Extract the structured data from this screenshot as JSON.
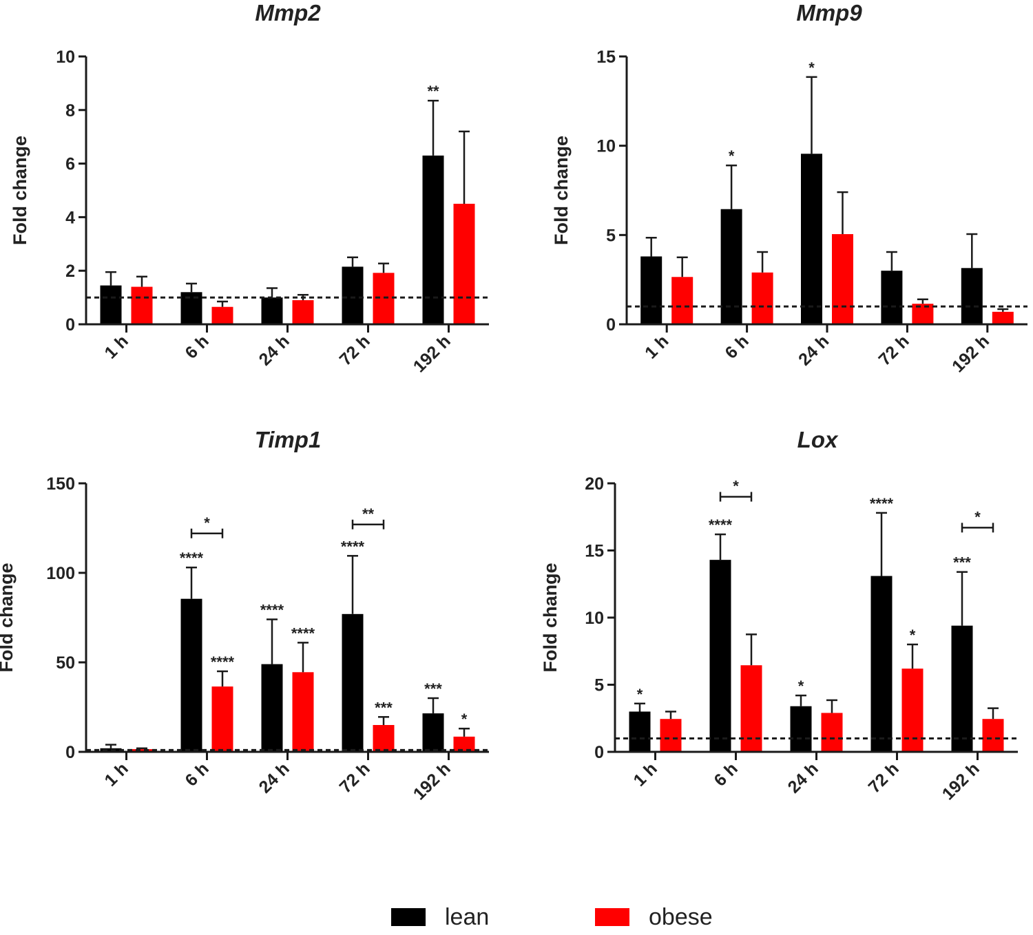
{
  "colors": {
    "lean": "#000000",
    "obese": "#ff0000",
    "axis": "#1a1a1a",
    "text": "#222222"
  },
  "legend": {
    "lean_label": "lean",
    "obese_label": "obese"
  },
  "chart_data": [
    {
      "id": "mmp2",
      "type": "bar",
      "title": "Mmp2",
      "ylabel": "Fold change",
      "xlabel": "",
      "categories": [
        "1 h",
        "6 h",
        "24 h",
        "72 h",
        "192 h"
      ],
      "ylim": [
        0,
        10
      ],
      "yticks": [
        "0",
        "2",
        "4",
        "6",
        "8",
        "10"
      ],
      "yticks_values": [
        0,
        2,
        4,
        6,
        8,
        10
      ],
      "reference_line": 1,
      "series": [
        {
          "name": "lean",
          "values": [
            1.45,
            1.2,
            1.0,
            2.15,
            6.3
          ],
          "errors": [
            0.5,
            0.32,
            0.35,
            0.35,
            2.05
          ]
        },
        {
          "name": "obese",
          "values": [
            1.4,
            0.65,
            0.9,
            1.92,
            4.5
          ],
          "errors": [
            0.38,
            0.2,
            0.2,
            0.35,
            2.7
          ]
        }
      ],
      "annotations": [
        {
          "text": "**",
          "category": 4,
          "series": 0
        }
      ],
      "brackets": []
    },
    {
      "id": "mmp9",
      "type": "bar",
      "title": "Mmp9",
      "ylabel": "Fold change",
      "xlabel": "",
      "categories": [
        "1 h",
        "6 h",
        "24 h",
        "72 h",
        "192 h"
      ],
      "ylim": [
        0,
        15
      ],
      "yticks": [
        "0",
        "5",
        "10",
        "15"
      ],
      "yticks_values": [
        0,
        5,
        10,
        15
      ],
      "reference_line": 1,
      "series": [
        {
          "name": "lean",
          "values": [
            3.8,
            6.45,
            9.55,
            3.0,
            3.15
          ],
          "errors": [
            1.05,
            2.45,
            4.3,
            1.05,
            1.9
          ]
        },
        {
          "name": "obese",
          "values": [
            2.65,
            2.9,
            5.05,
            1.15,
            0.7
          ],
          "errors": [
            1.1,
            1.15,
            2.35,
            0.25,
            0.15
          ]
        }
      ],
      "annotations": [
        {
          "text": "*",
          "category": 1,
          "series": 0
        },
        {
          "text": "*",
          "category": 2,
          "series": 0
        }
      ],
      "brackets": []
    },
    {
      "id": "timp1",
      "type": "bar",
      "title": "Timp1",
      "ylabel": "Fold change",
      "xlabel": "",
      "categories": [
        "1 h",
        "6 h",
        "24 h",
        "72 h",
        "192 h"
      ],
      "ylim": [
        0,
        150
      ],
      "yticks": [
        "0",
        "50",
        "100",
        "150"
      ],
      "yticks_values": [
        0,
        50,
        100,
        150
      ],
      "reference_line": 1,
      "series": [
        {
          "name": "lean",
          "values": [
            2,
            85.5,
            49,
            77,
            21.5
          ],
          "errors": [
            2,
            17.5,
            25,
            32.5,
            8.5
          ]
        },
        {
          "name": "obese",
          "values": [
            1.5,
            36.5,
            44.5,
            15,
            8.5
          ],
          "errors": [
            0.5,
            8.5,
            16.5,
            4.5,
            4.5
          ]
        }
      ],
      "annotations": [
        {
          "text": "****",
          "category": 1,
          "series": 0
        },
        {
          "text": "****",
          "category": 1,
          "series": 1
        },
        {
          "text": "****",
          "category": 2,
          "series": 0
        },
        {
          "text": "****",
          "category": 2,
          "series": 1
        },
        {
          "text": "****",
          "category": 3,
          "series": 0
        },
        {
          "text": "***",
          "category": 3,
          "series": 1
        },
        {
          "text": "***",
          "category": 4,
          "series": 0
        },
        {
          "text": "*",
          "category": 4,
          "series": 1
        }
      ],
      "brackets": [
        {
          "category": 1,
          "level": 122,
          "text": "*"
        },
        {
          "category": 3,
          "level": 127,
          "text": "**"
        }
      ]
    },
    {
      "id": "lox",
      "type": "bar",
      "title": "Lox",
      "ylabel": "Fold change",
      "xlabel": "",
      "categories": [
        "1 h",
        "6 h",
        "24 h",
        "72 h",
        "192 h"
      ],
      "ylim": [
        0,
        20
      ],
      "yticks": [
        "0",
        "5",
        "10",
        "15",
        "20"
      ],
      "yticks_values": [
        0,
        5,
        10,
        15,
        20
      ],
      "reference_line": 1,
      "series": [
        {
          "name": "lean",
          "values": [
            3.0,
            14.3,
            3.4,
            13.1,
            9.4
          ],
          "errors": [
            0.6,
            1.9,
            0.8,
            4.7,
            4.0
          ]
        },
        {
          "name": "obese",
          "values": [
            2.45,
            6.45,
            2.9,
            6.2,
            2.45
          ],
          "errors": [
            0.55,
            2.3,
            0.95,
            1.8,
            0.8
          ]
        }
      ],
      "annotations": [
        {
          "text": "*",
          "category": 0,
          "series": 0
        },
        {
          "text": "****",
          "category": 1,
          "series": 0
        },
        {
          "text": "*",
          "category": 2,
          "series": 0
        },
        {
          "text": "****",
          "category": 3,
          "series": 0
        },
        {
          "text": "*",
          "category": 3,
          "series": 1
        },
        {
          "text": "***",
          "category": 4,
          "series": 0
        }
      ],
      "brackets": [
        {
          "category": 1,
          "level": 19.0,
          "text": "*"
        },
        {
          "category": 4,
          "level": 16.7,
          "text": "*"
        }
      ]
    }
  ]
}
